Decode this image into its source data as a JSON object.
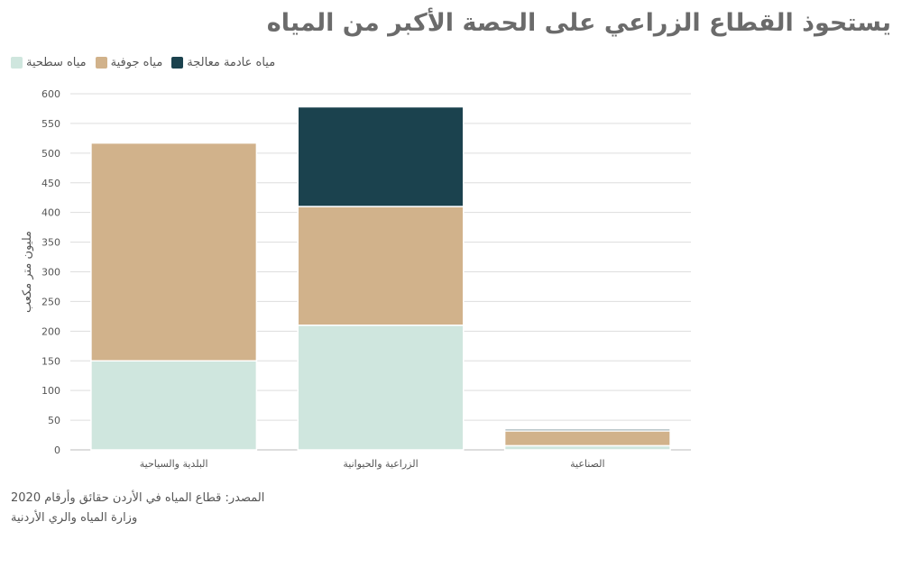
{
  "chart_data": {
    "type": "bar",
    "stacked": true,
    "title": "يستحوذ القطاع الزراعي على الحصة الأكبر من المياه",
    "ylabel": "مليون متر مكعب",
    "xlabel": "",
    "ylim": [
      0,
      600
    ],
    "yticks": [
      0,
      50,
      100,
      150,
      200,
      250,
      300,
      350,
      400,
      450,
      500,
      550,
      600
    ],
    "grid": true,
    "legend_position": "top-left",
    "categories": [
      "البلدية والسياحية",
      "الزراعية والحيوانية",
      "الصناعية"
    ],
    "series": [
      {
        "name": "مياه سطحية",
        "color": "#cfe6de",
        "values": [
          150,
          210,
          7
        ]
      },
      {
        "name": "مياه جوفية",
        "color": "#d1b28b",
        "values": [
          367,
          200,
          25
        ]
      },
      {
        "name": "مياه عادمة معالجة",
        "color": "#1b424e",
        "values": [
          0,
          168,
          3
        ]
      }
    ]
  },
  "legend_order": [
    2,
    1,
    0
  ],
  "source": {
    "line1": "المصدر: قطاع المياه في الأردن حقائق وأرقام 2020",
    "line2": "وزارة المياه والري الأردنية"
  }
}
